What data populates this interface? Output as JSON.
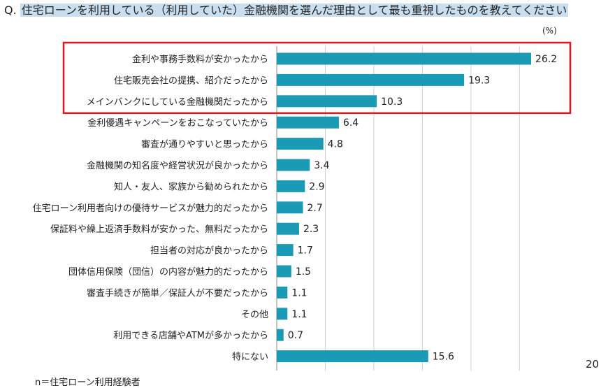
{
  "question": {
    "prefix": "Q.",
    "text": "住宅ローンを利用している（利用していた）金融機関を選んだ理由として最も重視したものを教えてください"
  },
  "unit_label": "(%)",
  "page_number": "20",
  "footnote": "n＝住宅ローン利用経験者",
  "colors": {
    "bar": "#1a9ab5",
    "highlight_box": "#e0161f",
    "gridline": "#d0d0d0",
    "question_bg": "#c9dff0"
  },
  "chart_data": {
    "type": "bar",
    "orientation": "horizontal",
    "categories": [
      "金利や事務手数料が安かったから",
      "住宅販売会社の提携、紹介だったから",
      "メインバンクにしている金融機関だったから",
      "金利優遇キャンペーンをおこなっていたから",
      "審査が通りやすいと思ったから",
      "金融機関の知名度や経営状況が良かったから",
      "知人・友人、家族から勧められたから",
      "住宅ローン利用者向けの優待サービスが魅力的だったから",
      "保証料や繰上返済手数料が安かった、無料だったから",
      "担当者の対応が良かったから",
      "団体信用保険（団信）の内容が魅力的だったから",
      "審査手続きが簡単／保証人が不要だったから",
      "その他",
      "利用できる店舗やATMが多かったから",
      "特にない"
    ],
    "values": [
      26.2,
      19.3,
      10.3,
      6.4,
      4.8,
      3.4,
      2.9,
      2.7,
      2.3,
      1.7,
      1.5,
      1.1,
      1.1,
      0.7,
      15.6
    ],
    "value_labels": [
      "26.2",
      "19.3",
      "10.3",
      "6.4",
      "4.8",
      "3.4",
      "2.9",
      "2.7",
      "2.3",
      "1.7",
      "1.5",
      "1.1",
      "1.1",
      "0.7",
      "15.6"
    ],
    "xlim": [
      0,
      30
    ],
    "grid": true,
    "highlighted_categories": [
      0,
      1,
      2
    ]
  }
}
